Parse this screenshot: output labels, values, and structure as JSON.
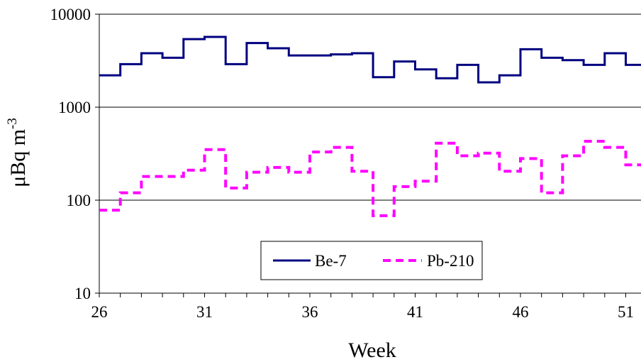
{
  "chart_data": {
    "type": "line",
    "step": true,
    "xlabel": "Week",
    "ylabel_base": "μBq m",
    "ylabel_exp": "-3",
    "yscale": "log",
    "ylim": [
      10,
      10000
    ],
    "xlim": [
      26,
      52
    ],
    "yticks": [
      10,
      100,
      1000,
      10000
    ],
    "yticklabels": [
      "10",
      "100",
      "1000",
      "10000"
    ],
    "xticks": [
      26,
      31,
      36,
      41,
      46,
      51
    ],
    "xticklabels": [
      "26",
      "31",
      "36",
      "41",
      "46",
      "51"
    ],
    "grid": "horizontal",
    "legend_position": "lower-center",
    "series": [
      {
        "name": "Be-7",
        "color": "#000080",
        "dash": "solid",
        "x": [
          26,
          27,
          28,
          29,
          30,
          31,
          32,
          33,
          34,
          35,
          36,
          37,
          38,
          39,
          40,
          41,
          42,
          43,
          44,
          45,
          46,
          47,
          48,
          49,
          50,
          51
        ],
        "values": [
          2200,
          2900,
          3800,
          3400,
          5400,
          5700,
          2900,
          4900,
          4300,
          3600,
          3600,
          3700,
          3800,
          2100,
          3100,
          2550,
          2050,
          2850,
          1850,
          2200,
          4200,
          3400,
          3200,
          2850,
          3800,
          2850
        ]
      },
      {
        "name": "Pb-210",
        "color": "#ff00ff",
        "dash": "dashed",
        "x": [
          26,
          27,
          28,
          29,
          30,
          31,
          32,
          33,
          34,
          35,
          36,
          37,
          38,
          39,
          40,
          41,
          42,
          43,
          44,
          45,
          46,
          47,
          48,
          49,
          50,
          51
        ],
        "values": [
          78,
          120,
          180,
          180,
          210,
          350,
          135,
          200,
          225,
          200,
          330,
          370,
          205,
          68,
          140,
          160,
          410,
          300,
          320,
          205,
          280,
          120,
          300,
          430,
          370,
          240
        ]
      }
    ]
  }
}
